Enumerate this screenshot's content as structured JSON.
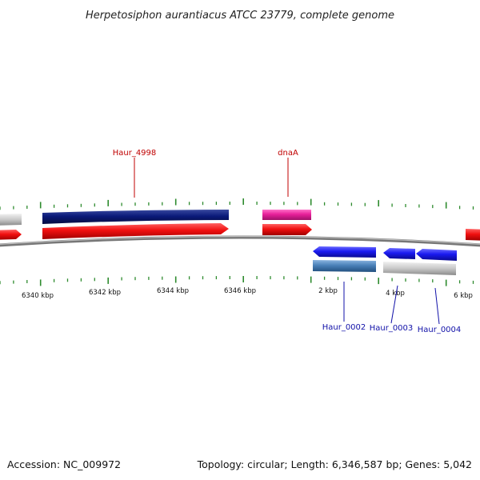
{
  "title": "Herpetosiphon aurantiacus ATCC 23779, complete genome",
  "footer": {
    "accession": "Accession: NC_009972",
    "summary": "Topology: circular; Length: 6,346,587 bp; Genes: 5,042"
  },
  "colors": {
    "backbone": "#8a8a8a",
    "tick": "#2e8b2e",
    "cds_forward": "#e81010",
    "cds_reverse": "#1a1af0",
    "gene_dark": "#0a1a7a",
    "gene_pink": "#e8209a",
    "gene_steel": "#4a80b8",
    "gene_grey": "#c8c8c8",
    "label_top": "#c00000",
    "label_bottom": "#1010a8"
  },
  "scale_labels": [
    "6340 kbp",
    "6342 kbp",
    "6344 kbp",
    "6346 kbp",
    "2 kbp",
    "4 kbp",
    "6 kbp"
  ],
  "gene_labels": {
    "haur_4998": "Haur_4998",
    "dnaA": "dnaA",
    "haur_0002": "Haur_0002",
    "haur_0003": "Haur_0003",
    "haur_0004": "Haur_0004"
  }
}
